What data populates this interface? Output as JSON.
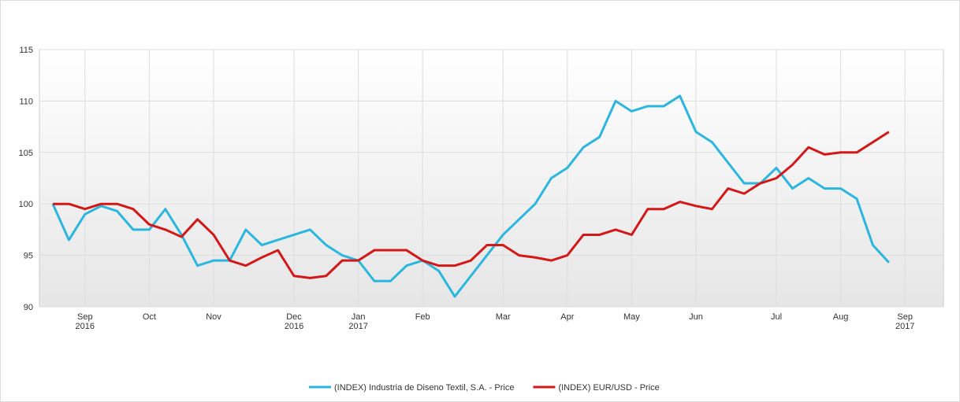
{
  "chart_data": {
    "type": "line",
    "categories": [
      null,
      null,
      "Sep 2016",
      null,
      null,
      null,
      "Oct",
      null,
      null,
      null,
      "Nov",
      null,
      null,
      null,
      null,
      "Dec 2016",
      null,
      null,
      null,
      "Jan 2017",
      null,
      null,
      null,
      "Feb",
      null,
      null,
      null,
      null,
      "Mar",
      null,
      null,
      null,
      "Apr",
      null,
      null,
      null,
      "May",
      null,
      null,
      null,
      "Jun",
      null,
      null,
      null,
      null,
      "Jul",
      null,
      null,
      null,
      "Aug",
      null,
      null,
      null,
      "Sep 2017"
    ],
    "series": [
      {
        "name": "(INDEX) Industria de Diseno Textil, S.A. - Price",
        "color": "#2bb6e0",
        "values": [
          100,
          96.5,
          99,
          99.8,
          99.3,
          97.5,
          97.5,
          99.5,
          97,
          94,
          94.5,
          94.5,
          97.5,
          96,
          96.5,
          97,
          97.5,
          96,
          95,
          94.5,
          92.5,
          92.5,
          94,
          94.5,
          93.5,
          91,
          93,
          95,
          97,
          98.5,
          100,
          102.5,
          103.5,
          105.5,
          106.5,
          110,
          109,
          109.5,
          109.5,
          110.5,
          107,
          106,
          104,
          102,
          102,
          103.5,
          101.5,
          102.5,
          101.5,
          101.5,
          100.5,
          96,
          94.3,
          null
        ]
      },
      {
        "name": "(INDEX) EUR/USD - Price",
        "color": "#d41717",
        "values": [
          100,
          100,
          99.5,
          100,
          100,
          99.5,
          98,
          97.5,
          96.8,
          98.5,
          97,
          94.5,
          94,
          94.8,
          95.5,
          93,
          92.8,
          93,
          94.5,
          94.5,
          95.5,
          95.5,
          95.5,
          94.5,
          94,
          94,
          94.5,
          96,
          96,
          95,
          94.8,
          94.5,
          95,
          97,
          97,
          97.5,
          97,
          99.5,
          99.5,
          100.2,
          99.8,
          99.5,
          101.5,
          101,
          102,
          102.5,
          103.8,
          105.5,
          104.8,
          105,
          105,
          106,
          107,
          null
        ]
      }
    ],
    "ylim": [
      90,
      115
    ],
    "yticks": [
      90,
      95,
      100,
      105,
      110,
      115
    ],
    "grid": true
  }
}
